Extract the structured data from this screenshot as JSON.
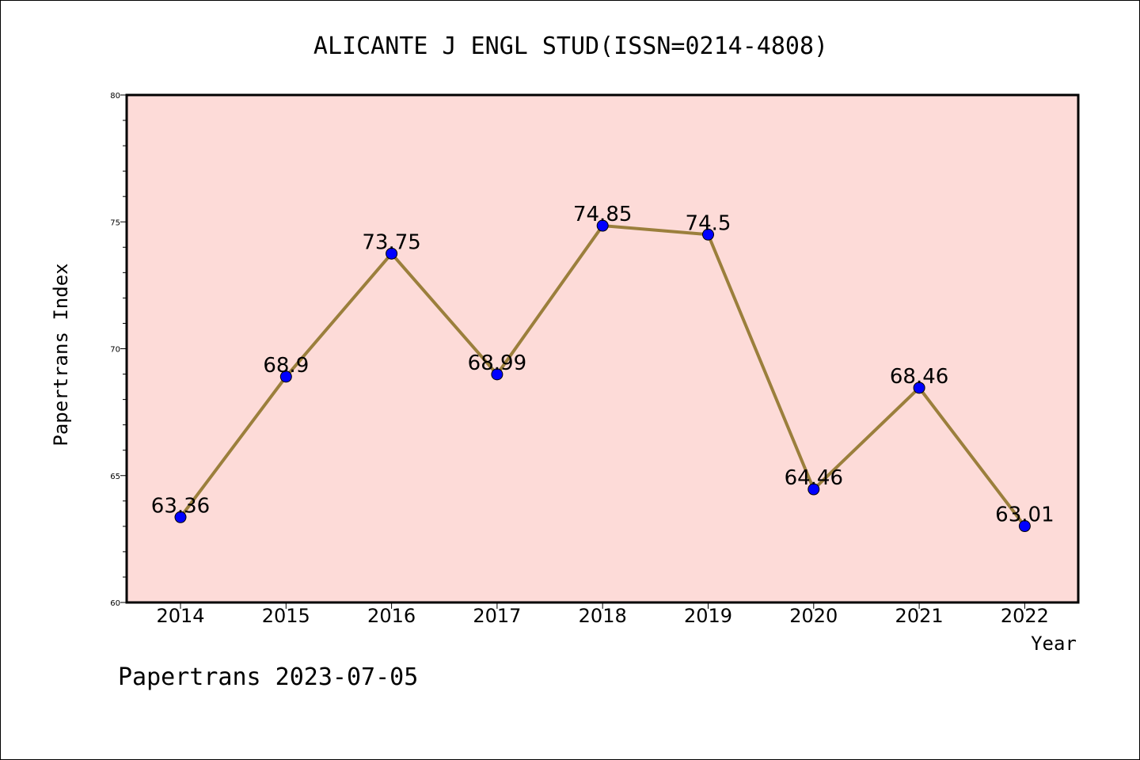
{
  "chart_data": {
    "type": "line",
    "title": "ALICANTE J ENGL STUD(ISSN=0214-4808)",
    "xlabel": "Year",
    "ylabel": "Papertrans Index",
    "categories": [
      "2014",
      "2015",
      "2016",
      "2017",
      "2018",
      "2019",
      "2020",
      "2021",
      "2022"
    ],
    "series": [
      {
        "values": [
          63.36,
          68.9,
          73.75,
          68.99,
          74.85,
          74.5,
          64.46,
          68.46,
          63.01
        ],
        "labels": [
          "63.36",
          "68.9",
          "73.75",
          "68.99",
          "74.85",
          "74.5",
          "64.46",
          "68.46",
          "63.01"
        ]
      }
    ],
    "ylim": [
      60,
      80
    ],
    "yticks": [
      "60",
      "65",
      "70",
      "75",
      "80"
    ],
    "grid": false,
    "colors": {
      "plot_background": "#fddbd8",
      "line": "#9b7f3c",
      "marker": "#0000ff"
    }
  },
  "footer": "Papertrans 2023-07-05"
}
